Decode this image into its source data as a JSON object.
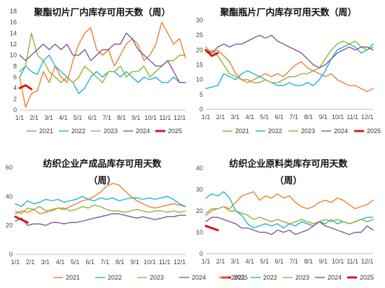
{
  "chart_data": [
    {
      "type": "line",
      "title": "聚酯切片厂内库存可用天数（周）",
      "ylim": [
        0,
        18
      ],
      "yticks": [
        "0",
        "2",
        "4",
        "6",
        "8",
        "10",
        "12",
        "14",
        "16",
        "18"
      ],
      "xticks": [
        "1/1",
        "2/1",
        "3/1",
        "4/1",
        "5/1",
        "6/1",
        "7/1",
        "8/1",
        "9/1",
        "10/1",
        "11/1",
        "12/1"
      ],
      "series": [
        {
          "name": "2021",
          "color": "#ED7D31",
          "width": 1.4,
          "values": [
            6,
            0.5,
            3,
            3.5,
            7,
            5,
            8,
            6,
            5,
            9,
            12,
            14,
            15,
            11,
            10,
            11,
            8,
            10,
            12,
            13,
            12,
            9,
            10,
            12,
            16,
            14,
            12,
            13,
            9.5
          ]
        },
        {
          "name": "2022",
          "color": "#20B1D4",
          "width": 1.4,
          "values": [
            6,
            8,
            7,
            6.5,
            9,
            10,
            8,
            7,
            6,
            5,
            3,
            4,
            6,
            7,
            6,
            7,
            7,
            6,
            7,
            6,
            5,
            6,
            5.5,
            6,
            5,
            5,
            6,
            5,
            5
          ]
        },
        {
          "name": "2023",
          "color": "#8CB438",
          "width": 1.4,
          "values": [
            7,
            8,
            14,
            10,
            9,
            7,
            6,
            5,
            6,
            5,
            6,
            8,
            7,
            6,
            5,
            7,
            7,
            8,
            6,
            7,
            7,
            8,
            6,
            7,
            8,
            9,
            9,
            10,
            10
          ]
        },
        {
          "name": "2024",
          "color": "#7A5A97",
          "width": 1.4,
          "values": [
            10,
            9,
            10,
            11,
            12,
            11,
            12,
            11,
            12,
            10,
            10,
            11,
            9,
            10,
            11,
            11,
            12,
            12,
            14,
            13,
            11,
            10,
            9,
            8,
            8,
            9,
            7,
            5,
            5
          ]
        },
        {
          "name": "2025",
          "color": "#D9141C",
          "width": 3,
          "values": [
            4,
            4.5,
            3.8
          ]
        }
      ]
    },
    {
      "type": "line",
      "title": "聚酯瓶片厂内库存可用天数（周）",
      "ylim": [
        0,
        30
      ],
      "yticks": [
        "0",
        "5",
        "10",
        "15",
        "20",
        "25",
        "30"
      ],
      "xticks": [
        "1/1",
        "2/1",
        "3/1",
        "4/1",
        "5/1",
        "6/1",
        "7/1",
        "8/1",
        "9/1",
        "10/1",
        "11/1",
        "12/1"
      ],
      "series": [
        {
          "name": "2021",
          "color": "#ED7D31",
          "width": 1.4,
          "values": [
            21,
            19,
            20,
            18,
            16,
            12,
            10,
            9,
            10,
            11,
            12,
            11,
            12,
            11,
            13,
            15,
            16,
            14,
            13,
            12,
            11,
            12,
            10,
            9,
            8,
            8,
            7,
            6,
            7
          ]
        },
        {
          "name": "2022",
          "color": "#20B1D4",
          "width": 1.4,
          "values": [
            7,
            7.5,
            8,
            12,
            11,
            10,
            12,
            13,
            12,
            11,
            10,
            9,
            8,
            8,
            9,
            8,
            8,
            9,
            8,
            10,
            13,
            17,
            20,
            21,
            22,
            21,
            19,
            20,
            22
          ]
        },
        {
          "name": "2023",
          "color": "#8CB438",
          "width": 1.4,
          "values": [
            19,
            20,
            18,
            15,
            12,
            11,
            10,
            10,
            9,
            9,
            10,
            9,
            9,
            10,
            11,
            11,
            12,
            12,
            13,
            14,
            17,
            20,
            22,
            23,
            22,
            23,
            21,
            20,
            21
          ]
        },
        {
          "name": "2024",
          "color": "#7A5A97",
          "width": 1.4,
          "values": [
            20,
            19,
            21,
            22,
            21,
            22,
            22,
            23,
            24,
            25,
            24,
            25,
            23,
            22,
            21,
            20,
            19,
            17,
            15,
            14,
            15,
            17,
            19,
            20,
            21,
            20,
            21,
            21,
            20
          ]
        },
        {
          "name": "2025",
          "color": "#D9141C",
          "width": 3,
          "values": [
            20,
            18,
            19
          ]
        }
      ]
    },
    {
      "type": "line",
      "title": "纺织企业产成品库存可用天数",
      "subtitle": "（周）",
      "ylim": [
        0,
        60
      ],
      "yticks": [
        "0",
        "20",
        "40",
        "60"
      ],
      "xticks": [
        "1/1",
        "2/1",
        "3/1",
        "4/1",
        "5/1",
        "6/1",
        "7/1",
        "8/1",
        "9/1",
        "10/1",
        "11/1",
        "12/1"
      ],
      "series": [
        {
          "name": "2021",
          "color": "#ED7D31",
          "width": 1.4,
          "values": [
            28,
            30,
            29,
            31,
            28,
            29,
            30,
            32,
            31,
            33,
            35,
            37,
            38,
            40,
            43,
            47,
            49,
            48,
            44,
            40,
            37,
            35,
            33,
            32,
            33,
            34,
            35,
            34,
            33
          ]
        },
        {
          "name": "2022",
          "color": "#20B1D4",
          "width": 1.4,
          "values": [
            35,
            33,
            37,
            35,
            36,
            38,
            37,
            38,
            36,
            37,
            38,
            40,
            38,
            37,
            39,
            38,
            39,
            37,
            38,
            39,
            39,
            38,
            39,
            38,
            39,
            40,
            38,
            35,
            33
          ]
        },
        {
          "name": "2023",
          "color": "#8CB438",
          "width": 1.4,
          "values": [
            30,
            28,
            32,
            31,
            33,
            30,
            31,
            32,
            32,
            30,
            31,
            33,
            32,
            34,
            33,
            31,
            30,
            30,
            29,
            30,
            31,
            30,
            29,
            30,
            30,
            29,
            30,
            29,
            30
          ]
        },
        {
          "name": "2024",
          "color": "#7A5A97",
          "width": 1.4,
          "values": [
            23,
            25,
            20,
            21,
            21,
            20,
            22,
            22,
            21,
            22,
            22,
            23,
            24,
            25,
            26,
            27,
            28,
            28,
            27,
            26,
            25,
            26,
            25,
            24,
            25,
            26,
            26,
            27,
            27
          ]
        },
        {
          "name": "2025",
          "color": "#D9141C",
          "width": 3,
          "values": [
            26,
            24,
            22
          ]
        }
      ]
    },
    {
      "type": "line",
      "title": "纺织企业原料类库存可用天数",
      "subtitle": "（周）",
      "ylim": [
        0,
        40
      ],
      "yticks": [
        "0",
        "10",
        "20",
        "30",
        "40"
      ],
      "xticks": [
        "1/1",
        "2/1",
        "3/1",
        "4/1",
        "5/1",
        "6/1",
        "7/1",
        "8/1",
        "9/1",
        "10/1",
        "11/1",
        "12/1"
      ],
      "series": [
        {
          "name": "2021",
          "color": "#ED7D31",
          "width": 1.4,
          "values": [
            18,
            20,
            21,
            22,
            21,
            24,
            27,
            28,
            29,
            25,
            27,
            26,
            28,
            26,
            27,
            24,
            22,
            21,
            22,
            24,
            25,
            24,
            26,
            25,
            23,
            21,
            22,
            23,
            25
          ]
        },
        {
          "name": "2022",
          "color": "#20B1D4",
          "width": 1.4,
          "values": [
            26,
            28,
            27,
            29,
            26,
            20,
            18,
            14,
            12,
            13,
            14,
            13,
            14,
            12,
            14,
            13,
            15,
            14,
            13,
            15,
            14,
            16,
            14,
            15,
            14,
            15,
            16,
            17,
            17
          ]
        },
        {
          "name": "2023",
          "color": "#8CB438",
          "width": 1.4,
          "values": [
            19,
            21,
            21,
            22,
            20,
            20,
            19,
            18,
            16,
            17,
            16,
            15,
            16,
            15,
            14,
            15,
            16,
            15,
            14,
            15,
            16,
            15,
            16,
            15,
            14,
            15,
            16,
            15,
            16
          ]
        },
        {
          "name": "2024",
          "color": "#7A5A97",
          "width": 1.4,
          "values": [
            15,
            17,
            17,
            16,
            15,
            14,
            12,
            12,
            11,
            10,
            10,
            9,
            11,
            10,
            11,
            9,
            10,
            11,
            13,
            15,
            13,
            12,
            11,
            10,
            9,
            10,
            10,
            13,
            11
          ]
        },
        {
          "name": "2025",
          "color": "#D9141C",
          "width": 3,
          "values": [
            13,
            12,
            11
          ]
        }
      ]
    }
  ]
}
